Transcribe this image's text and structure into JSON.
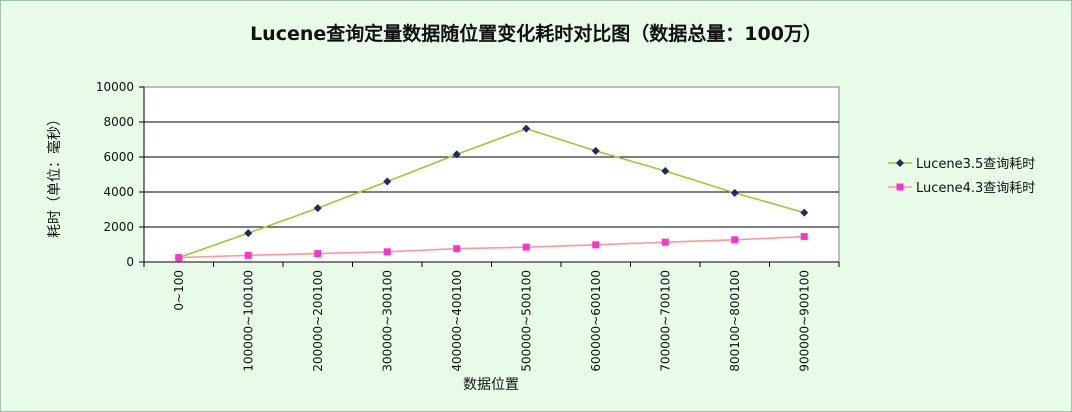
{
  "chart_data": {
    "type": "line",
    "title": "Lucene查询定量数据随位置变化耗时对比图（数据总量：100万）",
    "xlabel": "数据位置",
    "ylabel": "耗时（单位：毫秒）",
    "categories": [
      "0~100",
      "100000~100100",
      "200000~200100",
      "300000~300100",
      "400000~400100",
      "500000~500100",
      "600000~600100",
      "700000~700100",
      "800100~800100",
      "900000~900100"
    ],
    "ylim": [
      0,
      10000
    ],
    "yticks": [
      0,
      2000,
      4000,
      6000,
      8000,
      10000
    ],
    "grid": true,
    "legend_position": "right",
    "series": [
      {
        "name": "Lucene3.5查询耗时",
        "color": "#99cc33",
        "marker": "diamond",
        "marker_color": "#1f2a6b",
        "values": [
          250,
          1650,
          3080,
          4600,
          6150,
          7620,
          6350,
          5200,
          3950,
          2820
        ]
      },
      {
        "name": "Lucene4.3查询耗时",
        "color": "#ff9999",
        "marker": "square",
        "marker_color": "#ff33cc",
        "values": [
          250,
          380,
          480,
          580,
          760,
          850,
          980,
          1130,
          1270,
          1450
        ]
      }
    ]
  }
}
